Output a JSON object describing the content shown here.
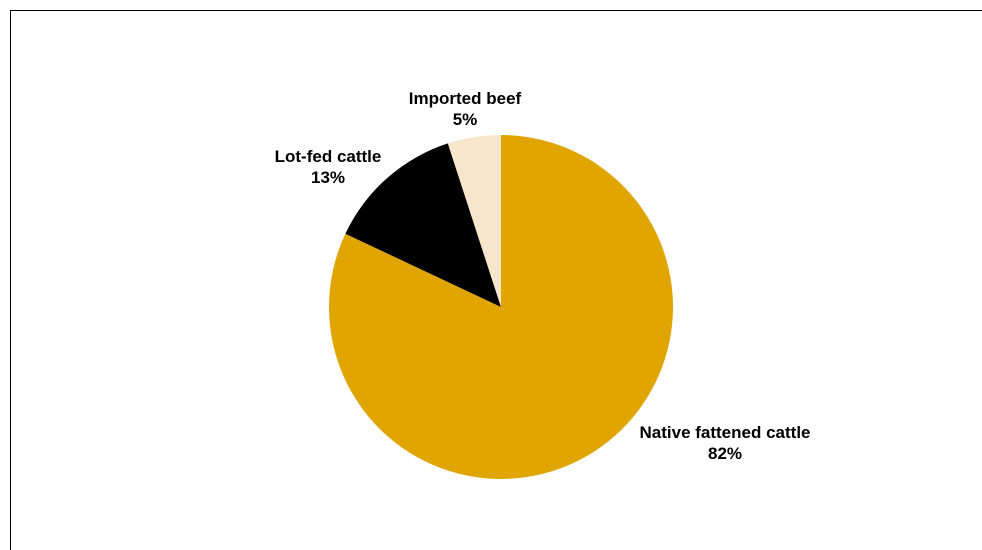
{
  "chart_data": {
    "type": "pie",
    "title": "",
    "slices": [
      {
        "label": "Native fattened cattle",
        "value": 82,
        "display": "82%",
        "color": "#E1A500"
      },
      {
        "label": "Lot-fed cattle",
        "value": 13,
        "display": "13%",
        "color": "#000000"
      },
      {
        "label": "Imported beef",
        "value": 5,
        "display": "5%",
        "color": "#F8E6CC"
      }
    ],
    "start_angle_deg": 0,
    "direction": "clockwise",
    "legend": "none"
  }
}
